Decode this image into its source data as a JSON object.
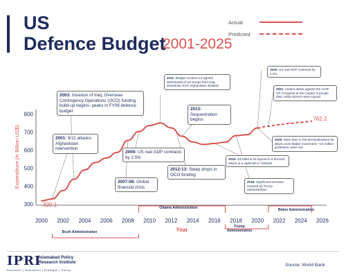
{
  "header": {
    "title_line1": "US",
    "title_line2": "Defence Budget",
    "title_years": "2001-2025"
  },
  "legend": {
    "actual": "Actual",
    "predicted": "Predicted"
  },
  "colors": {
    "primary": "#1d2a5c",
    "accent": "#d9534f",
    "annotation_border": "#6a6a6a"
  },
  "chart_data": {
    "type": "line",
    "title": "US Defence Budget 2001-2025",
    "xlabel": "Year",
    "ylabel": "Expenditure (in Billion US$)",
    "xlim": [
      2000,
      2026
    ],
    "ylim": [
      300,
      800
    ],
    "x_ticks": [
      2000,
      2002,
      2004,
      2006,
      2008,
      2010,
      2012,
      2014,
      2016,
      2018,
      2020,
      2022,
      2024,
      2026
    ],
    "y_ticks": [
      300,
      400,
      500,
      600,
      700,
      800
    ],
    "grid": false,
    "legend_position": "top-right",
    "series": [
      {
        "name": "Actual",
        "style": "solid",
        "x": [
          2000,
          2001,
          2002,
          2003,
          2004,
          2005,
          2006,
          2007,
          2008,
          2009,
          2010,
          2011,
          2012,
          2013,
          2014,
          2015,
          2016,
          2017,
          2018,
          2019,
          2020
        ],
        "values": [
          320.1,
          331,
          378,
          440,
          492,
          533,
          558,
          589,
          656,
          705,
          738,
          752,
          725,
          679,
          647,
          633,
          639,
          646,
          682,
          687,
          725
        ]
      },
      {
        "name": "Predicted",
        "style": "dashed",
        "x": [
          2020,
          2021,
          2022,
          2023,
          2024,
          2025
        ],
        "values": [
          725,
          735,
          743,
          750,
          756,
          762.2
        ]
      }
    ],
    "point_labels": [
      {
        "x": 2000,
        "y": 320.1,
        "label": "320.1"
      },
      {
        "x": 2025,
        "y": 762.2,
        "label": "762.2"
      }
    ],
    "eras": [
      {
        "label": "Bush Administration",
        "x_start": 2001,
        "x_end": 2009,
        "side": "below"
      },
      {
        "label": "Obama Administration",
        "x_start": 2009,
        "x_end": 2017,
        "side": "above"
      },
      {
        "label": "Trump Administration",
        "x_start": 2017,
        "x_end": 2021,
        "side": "below"
      },
      {
        "label": "Biden Administration",
        "x_start": 2021,
        "x_end": 2025,
        "side": "above"
      }
    ],
    "annotations": [
      {
        "year_label": "2001:",
        "text": "9/11 attacks: Afghanistan intervention",
        "anchor_x": 2001,
        "anchor_y": 331
      },
      {
        "year_label": "2003:",
        "text": "Invasion of Iraq; Overseas Contingency Operations (OCO) funding build-up begins- peaks in FY08 defence budget",
        "anchor_x": 2003,
        "anchor_y": 440
      },
      {
        "year_label": "2007-08:",
        "text": "Global financial crisis",
        "anchor_x": 2008,
        "anchor_y": 656
      },
      {
        "year_label": "2009:",
        "text": "US real GDP contracts by 2.5%",
        "anchor_x": 2009,
        "anchor_y": 705
      },
      {
        "year_label": "2011:",
        "text": "Budget Control Act signed; Withdrawal of US troops from Iraq; Drawdown from Afghanistan initiated",
        "anchor_x": 2011,
        "anchor_y": 752
      },
      {
        "year_label": "2012-13:",
        "text": "Steep drops in OCO funding",
        "anchor_x": 2012.5,
        "anchor_y": 700
      },
      {
        "year_label": "2013:",
        "text": "Sequestration begins",
        "anchor_x": 2013,
        "anchor_y": 679
      },
      {
        "year_label": "2016:",
        "text": "49 killed & 53 injured in a terrorist attack at a nightclub in Orlando",
        "anchor_x": 2016,
        "anchor_y": 639
      },
      {
        "year_label": "2018:",
        "text": "Significant increase enacted by Trump administration",
        "anchor_x": 2018,
        "anchor_y": 682
      },
      {
        "year_label": "2020:",
        "text": "US real GDP contracts by 4.3%",
        "anchor_x": 2020,
        "anchor_y": 725
      },
      {
        "year_label": "2021:",
        "text": "Violent attack against the 117th US Congress at the Capitol; 5 people died, while dozens were injured",
        "anchor_x": 2021,
        "anchor_y": 735
      },
      {
        "year_label": "2020:",
        "text": "More than 4,700 demonstrations for Black Lives Matter movement; ~15 million protestors came out",
        "anchor_x": 2020,
        "anchor_y": 725
      }
    ]
  },
  "footer": {
    "logo_abbr": "IPRI",
    "logo_name": "Islamabad Policy Research Institute",
    "logo_tagline": "Research | Innovation | Dialogue | Policy",
    "source": "Source: World Bank"
  }
}
